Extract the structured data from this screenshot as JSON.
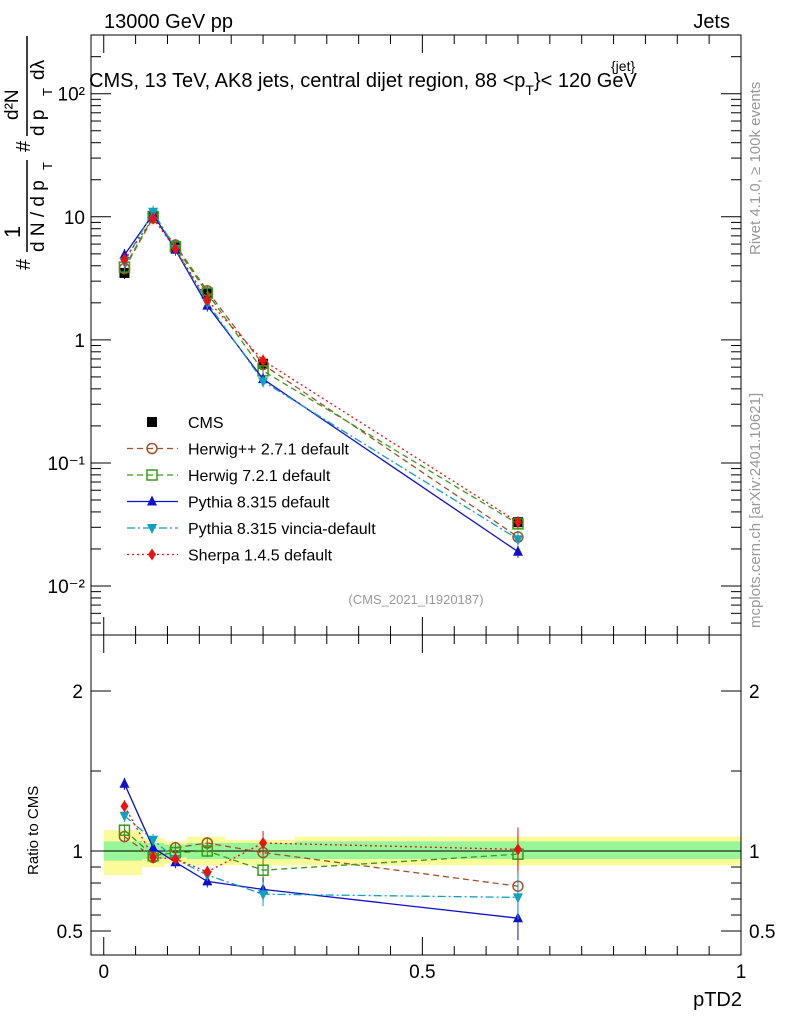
{
  "header": {
    "left": "13000 GeV pp",
    "right": "Jets"
  },
  "side_text": {
    "rivet": "Rivet 4.1.0, ≥ 100k events",
    "mcplots": "mcplots.cern.ch [arXiv:2401.10621]"
  },
  "chart_data": [
    {
      "type": "line",
      "panel": "main",
      "title": "CMS, 13 TeV, AK8 jets, central dijet region, 88 <p_T^{jet}< 120 GeV",
      "title_parts": {
        "main": "CMS, 13 TeV, AK8 jets, central dijet region, 88 <p",
        "sub": "T",
        "sup": "{jet}",
        "tail": "}< 120 GeV"
      },
      "ylabel": "1/N dN/dp_T d²N/dp_T dλ",
      "ylabel_parts": {
        "hash": "#",
        "one": "1",
        "dN": "d N / d p",
        "T": "T",
        "d2N": "d²N",
        "dp": "d p",
        "dlambda": "dλ"
      },
      "yscale": "log",
      "ylim": [
        0.004,
        300
      ],
      "xlim": [
        -0.02,
        1.0
      ],
      "y_tick_labels": [
        "10⁻²",
        "10⁻¹",
        "1",
        "10",
        "10²"
      ],
      "y_tick_values": [
        0.01,
        0.1,
        1,
        10,
        100
      ],
      "watermark": "(CMS_2021_I1920187)",
      "x": [
        0.0325,
        0.0775,
        0.1125,
        0.1625,
        0.25,
        0.65
      ],
      "series": [
        {
          "name": "CMS",
          "color": "#000000",
          "marker": "square-filled",
          "line": "none",
          "values": [
            3.5,
            10.2,
            5.8,
            2.4,
            0.64,
            0.033
          ]
        },
        {
          "name": "Herwig++ 2.7.1 default",
          "color": "#a0522d",
          "marker": "circle-open",
          "line": "dashed",
          "values": [
            3.8,
            9.8,
            5.9,
            2.5,
            0.63,
            0.025
          ]
        },
        {
          "name": "Herwig 7.2.1 default",
          "color": "#3a9a1a",
          "marker": "square-open",
          "line": "dashed",
          "values": [
            3.9,
            10.0,
            5.7,
            2.4,
            0.56,
            0.032
          ]
        },
        {
          "name": "Pythia 8.315 default",
          "color": "#1010cc",
          "marker": "triangle-up",
          "line": "solid",
          "values": [
            4.9,
            10.5,
            5.4,
            1.9,
            0.48,
            0.019
          ]
        },
        {
          "name": "Pythia 8.315 vincia-default",
          "color": "#10a0c0",
          "marker": "triangle-down",
          "line": "dashdot",
          "values": [
            4.3,
            11.0,
            5.5,
            2.0,
            0.46,
            0.024
          ]
        },
        {
          "name": "Sherpa 1.4.5 default",
          "color": "#ee1111",
          "marker": "diamond",
          "line": "dotted",
          "values": [
            4.5,
            9.7,
            5.5,
            2.1,
            0.68,
            0.033
          ]
        }
      ]
    },
    {
      "type": "line",
      "panel": "ratio",
      "xlabel": "pTD2",
      "ylabel": "Ratio to CMS",
      "ylim": [
        0.35,
        2.35
      ],
      "xlim": [
        -0.02,
        1.0
      ],
      "y_tick_labels": [
        "0.5",
        "1",
        "2"
      ],
      "y_tick_values": [
        0.5,
        1,
        2
      ],
      "x_tick_labels": [
        "0",
        "0.5",
        "1"
      ],
      "x_tick_values": [
        0,
        0.5,
        1
      ],
      "band_edges": [
        0,
        0.06,
        0.095,
        0.13,
        0.19,
        0.3,
        1.0
      ],
      "band_inner": [
        [
          0.94,
          1.06
        ],
        [
          0.95,
          1.05
        ],
        [
          0.96,
          1.04
        ],
        [
          0.95,
          1.05
        ],
        [
          0.95,
          1.05
        ],
        [
          0.95,
          1.06
        ]
      ],
      "band_outer": [
        [
          0.85,
          1.13
        ],
        [
          0.9,
          1.08
        ],
        [
          0.92,
          1.06
        ],
        [
          0.91,
          1.09
        ],
        [
          0.91,
          1.07
        ],
        [
          0.91,
          1.09
        ]
      ],
      "x": [
        0.0325,
        0.0775,
        0.1125,
        0.1625,
        0.25,
        0.65
      ],
      "series": [
        {
          "name": "Herwig++ 2.7.1 default",
          "color": "#a0522d",
          "values": [
            1.09,
            0.96,
            1.02,
            1.05,
            0.99,
            0.78
          ]
        },
        {
          "name": "Herwig 7.2.1 default",
          "color": "#3a9a1a",
          "values": [
            1.13,
            0.97,
            0.99,
            1.0,
            0.88,
            0.98
          ]
        },
        {
          "name": "Pythia 8.315 default",
          "color": "#1010cc",
          "values": [
            1.42,
            1.02,
            0.93,
            0.81,
            0.76,
            0.58
          ]
        },
        {
          "name": "Pythia 8.315 vincia-default",
          "color": "#10a0c0",
          "values": [
            1.22,
            1.07,
            0.95,
            0.85,
            0.73,
            0.71
          ]
        },
        {
          "name": "Sherpa 1.4.5 default",
          "color": "#ee1111",
          "values": [
            1.28,
            0.96,
            0.95,
            0.87,
            1.05,
            1.01
          ]
        }
      ]
    }
  ]
}
